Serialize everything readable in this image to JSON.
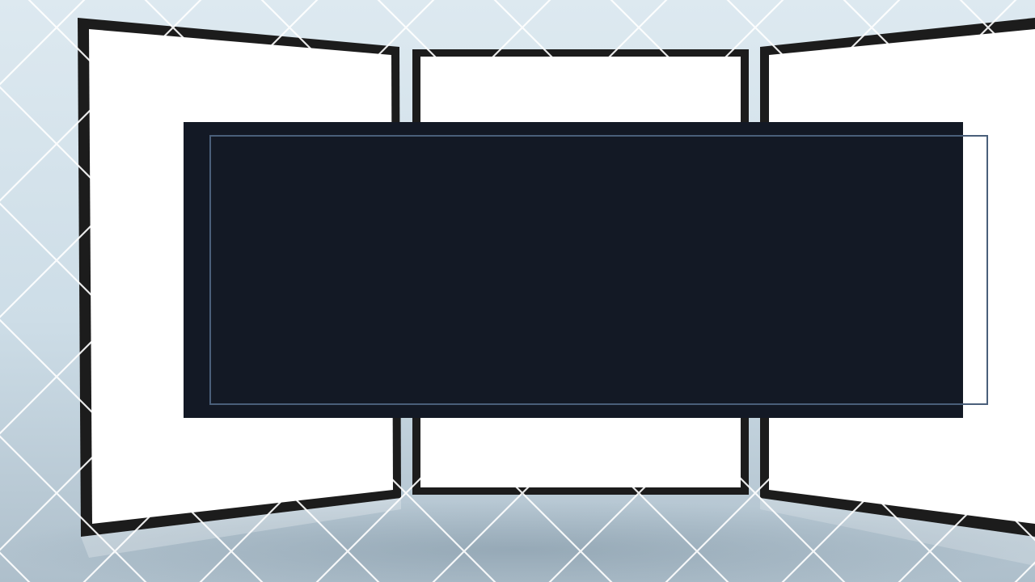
{
  "slide": {
    "title": "",
    "subtitle": ""
  },
  "colors": {
    "background": "#d7e4ec",
    "panel_fill": "#ffffff",
    "panel_frame": "#1e1e1e",
    "title_box": "#131925",
    "title_outline": "#4a5f7a",
    "lattice_lines": "#ffffff"
  },
  "icons": {
    "background_art": "three-blank-display-panels"
  }
}
